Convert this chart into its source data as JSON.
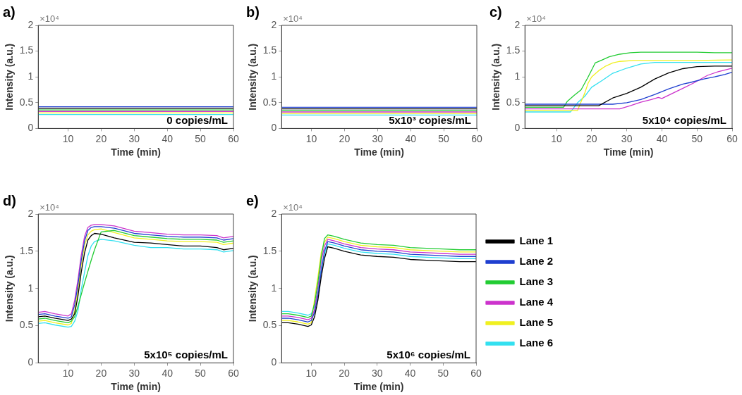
{
  "chart_data": [
    {
      "type": "line",
      "title": "a)",
      "xlabel": "Time (min)",
      "ylabel": "Intensity (a.u.)",
      "xlim": [
        1,
        60
      ],
      "xticks": [
        10,
        20,
        30,
        40,
        50,
        60
      ],
      "ylim": [
        0,
        2
      ],
      "yticks": [
        0,
        0.5,
        1,
        1.5,
        2
      ],
      "annotations": [
        "×10⁴",
        "0 copies/mL"
      ],
      "x": [
        1,
        10,
        20,
        30,
        40,
        50,
        60
      ],
      "series": [
        {
          "color": "#000000",
          "values": [
            0.39,
            0.39,
            0.39,
            0.39,
            0.39,
            0.39,
            0.39
          ]
        },
        {
          "color": "#1f3fd0",
          "values": [
            0.42,
            0.42,
            0.42,
            0.42,
            0.42,
            0.42,
            0.42
          ]
        },
        {
          "color": "#22cc33",
          "values": [
            0.36,
            0.36,
            0.36,
            0.36,
            0.36,
            0.36,
            0.36
          ]
        },
        {
          "color": "#cc33cc",
          "values": [
            0.33,
            0.33,
            0.33,
            0.33,
            0.33,
            0.33,
            0.33
          ]
        },
        {
          "color": "#f0f020",
          "values": [
            0.3,
            0.3,
            0.3,
            0.3,
            0.3,
            0.3,
            0.3
          ]
        },
        {
          "color": "#33e0f0",
          "values": [
            0.27,
            0.27,
            0.27,
            0.27,
            0.27,
            0.27,
            0.27
          ]
        }
      ]
    },
    {
      "type": "line",
      "title": "b)",
      "xlabel": "Time (min)",
      "ylabel": "Intensity (a.u.)",
      "xlim": [
        1,
        60
      ],
      "xticks": [
        10,
        20,
        30,
        40,
        50,
        60
      ],
      "ylim": [
        0,
        2
      ],
      "yticks": [
        0,
        0.5,
        1,
        1.5,
        2
      ],
      "annotations": [
        "×10⁴",
        "5x10³ copies/mL"
      ],
      "x": [
        1,
        10,
        20,
        30,
        40,
        50,
        60
      ],
      "series": [
        {
          "color": "#000000",
          "values": [
            0.38,
            0.38,
            0.38,
            0.38,
            0.38,
            0.38,
            0.38
          ]
        },
        {
          "color": "#1f3fd0",
          "values": [
            0.41,
            0.41,
            0.41,
            0.41,
            0.41,
            0.41,
            0.41
          ]
        },
        {
          "color": "#22cc33",
          "values": [
            0.35,
            0.35,
            0.35,
            0.35,
            0.35,
            0.35,
            0.35
          ]
        },
        {
          "color": "#cc33cc",
          "values": [
            0.32,
            0.32,
            0.32,
            0.32,
            0.32,
            0.32,
            0.32
          ]
        },
        {
          "color": "#f0f020",
          "values": [
            0.29,
            0.29,
            0.29,
            0.29,
            0.29,
            0.29,
            0.29
          ]
        },
        {
          "color": "#33e0f0",
          "values": [
            0.26,
            0.26,
            0.26,
            0.26,
            0.26,
            0.26,
            0.26
          ]
        }
      ]
    },
    {
      "type": "line",
      "title": "c)",
      "xlabel": "Time (min)",
      "ylabel": "Intensity (a.u.)",
      "xlim": [
        1,
        60
      ],
      "xticks": [
        10,
        20,
        30,
        40,
        50,
        60
      ],
      "ylim": [
        0,
        2
      ],
      "yticks": [
        0,
        0.5,
        1,
        1.5,
        2
      ],
      "annotations": [
        "×10⁴",
        "5x10⁴ copies/mL"
      ],
      "series": [
        {
          "color": "#000000",
          "x": [
            1,
            5,
            10,
            15,
            20,
            22,
            26,
            30,
            34,
            38,
            42,
            46,
            50,
            55,
            60
          ],
          "values": [
            0.44,
            0.44,
            0.44,
            0.44,
            0.44,
            0.44,
            0.59,
            0.68,
            0.8,
            0.96,
            1.08,
            1.16,
            1.2,
            1.21,
            1.21
          ]
        },
        {
          "color": "#1f3fd0",
          "x": [
            1,
            5,
            10,
            15,
            20,
            26,
            30,
            34,
            38,
            42,
            46,
            48,
            52,
            55,
            58,
            60
          ],
          "values": [
            0.47,
            0.47,
            0.47,
            0.47,
            0.47,
            0.47,
            0.5,
            0.56,
            0.66,
            0.77,
            0.86,
            0.89,
            0.96,
            1.0,
            1.05,
            1.09
          ]
        },
        {
          "color": "#22cc33",
          "x": [
            1,
            5,
            10,
            12,
            13,
            15,
            17,
            19,
            21,
            23,
            25,
            28,
            31,
            34,
            40,
            50,
            55,
            60
          ],
          "values": [
            0.41,
            0.41,
            0.41,
            0.41,
            0.52,
            0.64,
            0.75,
            1.0,
            1.27,
            1.33,
            1.39,
            1.44,
            1.47,
            1.48,
            1.48,
            1.48,
            1.47,
            1.47
          ]
        },
        {
          "color": "#cc33cc",
          "x": [
            1,
            5,
            10,
            20,
            28,
            31,
            34,
            37,
            39,
            40,
            43,
            46,
            49,
            53,
            56,
            60
          ],
          "values": [
            0.38,
            0.38,
            0.38,
            0.38,
            0.38,
            0.44,
            0.51,
            0.56,
            0.6,
            0.58,
            0.68,
            0.78,
            0.88,
            1.03,
            1.1,
            1.17
          ]
        },
        {
          "color": "#f0f020",
          "x": [
            1,
            5,
            10,
            15,
            16,
            17,
            18,
            19,
            20,
            22,
            24,
            26,
            28,
            32,
            40,
            50,
            60
          ],
          "values": [
            0.35,
            0.35,
            0.35,
            0.35,
            0.35,
            0.52,
            0.68,
            0.88,
            1.0,
            1.12,
            1.21,
            1.27,
            1.3,
            1.32,
            1.32,
            1.32,
            1.33
          ]
        },
        {
          "color": "#33e0f0",
          "x": [
            1,
            5,
            10,
            13,
            14,
            15,
            16,
            18,
            20,
            23,
            26,
            30,
            34,
            38,
            42,
            50,
            60
          ],
          "values": [
            0.32,
            0.32,
            0.32,
            0.32,
            0.32,
            0.41,
            0.5,
            0.62,
            0.8,
            0.93,
            1.07,
            1.17,
            1.25,
            1.28,
            1.28,
            1.28,
            1.28
          ]
        }
      ]
    },
    {
      "type": "line",
      "title": "d)",
      "xlabel": "Time (min)",
      "ylabel": "Intensity (a.u.)",
      "xlim": [
        1,
        60
      ],
      "xticks": [
        10,
        20,
        30,
        40,
        50,
        60
      ],
      "ylim": [
        0,
        2
      ],
      "yticks": [
        0,
        0.5,
        1,
        1.5,
        2
      ],
      "annotations": [
        "×10⁴",
        "5x10⁵ copies/mL"
      ],
      "x": [
        1,
        3,
        6,
        10,
        11,
        12,
        13,
        14,
        15,
        16,
        17,
        18,
        20,
        24,
        30,
        35,
        40,
        45,
        50,
        55,
        57,
        60
      ],
      "series": [
        {
          "color": "#000000",
          "values": [
            0.62,
            0.63,
            0.6,
            0.57,
            0.59,
            0.66,
            0.9,
            1.22,
            1.48,
            1.65,
            1.71,
            1.74,
            1.73,
            1.68,
            1.62,
            1.61,
            1.59,
            1.57,
            1.57,
            1.55,
            1.52,
            1.54
          ]
        },
        {
          "color": "#1f3fd0",
          "values": [
            0.65,
            0.66,
            0.63,
            0.6,
            0.62,
            0.78,
            1.05,
            1.38,
            1.64,
            1.78,
            1.82,
            1.83,
            1.83,
            1.81,
            1.74,
            1.72,
            1.7,
            1.69,
            1.69,
            1.68,
            1.65,
            1.67
          ]
        },
        {
          "color": "#22cc33",
          "values": [
            0.59,
            0.6,
            0.57,
            0.54,
            0.56,
            0.62,
            0.76,
            0.92,
            1.08,
            1.23,
            1.38,
            1.52,
            1.76,
            1.78,
            1.71,
            1.69,
            1.67,
            1.66,
            1.66,
            1.65,
            1.62,
            1.64
          ]
        },
        {
          "color": "#cc33cc",
          "values": [
            0.68,
            0.69,
            0.66,
            0.63,
            0.66,
            0.84,
            1.12,
            1.45,
            1.7,
            1.82,
            1.85,
            1.86,
            1.86,
            1.84,
            1.77,
            1.75,
            1.73,
            1.72,
            1.72,
            1.71,
            1.68,
            1.7
          ]
        },
        {
          "color": "#f0f020",
          "values": [
            0.56,
            0.57,
            0.54,
            0.51,
            0.53,
            0.7,
            0.98,
            1.32,
            1.58,
            1.72,
            1.77,
            1.79,
            1.8,
            1.75,
            1.68,
            1.66,
            1.64,
            1.63,
            1.63,
            1.62,
            1.59,
            1.61
          ]
        },
        {
          "color": "#33e0f0",
          "values": [
            0.53,
            0.54,
            0.51,
            0.48,
            0.49,
            0.56,
            0.7,
            0.99,
            1.22,
            1.44,
            1.57,
            1.63,
            1.66,
            1.64,
            1.58,
            1.55,
            1.55,
            1.53,
            1.53,
            1.52,
            1.49,
            1.51
          ]
        }
      ]
    },
    {
      "type": "line",
      "title": "e)",
      "xlabel": "Time (min)",
      "ylabel": "Intensity (a.u.)",
      "xlim": [
        1,
        60
      ],
      "xticks": [
        10,
        20,
        30,
        40,
        50,
        60
      ],
      "ylim": [
        0,
        2
      ],
      "yticks": [
        0,
        0.5,
        1,
        1.5,
        2
      ],
      "annotations": [
        "×10⁴",
        "5x10⁶ copies/mL"
      ],
      "legend": "right",
      "x": [
        1,
        3,
        6,
        9,
        10,
        11,
        12,
        13,
        14,
        15,
        17,
        20,
        25,
        30,
        35,
        40,
        45,
        50,
        55,
        60
      ],
      "series": [
        {
          "name": "Lane 1",
          "color": "#000000",
          "values": [
            0.54,
            0.54,
            0.52,
            0.49,
            0.51,
            0.62,
            0.84,
            1.15,
            1.4,
            1.56,
            1.54,
            1.5,
            1.45,
            1.43,
            1.42,
            1.39,
            1.38,
            1.37,
            1.36,
            1.36
          ]
        },
        {
          "name": "Lane 2",
          "color": "#1f3fd0",
          "values": [
            0.6,
            0.6,
            0.58,
            0.55,
            0.57,
            0.68,
            0.9,
            1.22,
            1.5,
            1.63,
            1.61,
            1.57,
            1.52,
            1.5,
            1.49,
            1.46,
            1.45,
            1.44,
            1.43,
            1.43
          ]
        },
        {
          "name": "Lane 3",
          "color": "#22cc33",
          "values": [
            0.66,
            0.66,
            0.64,
            0.61,
            0.63,
            0.8,
            1.08,
            1.42,
            1.67,
            1.72,
            1.7,
            1.66,
            1.61,
            1.59,
            1.58,
            1.55,
            1.54,
            1.53,
            1.52,
            1.52
          ]
        },
        {
          "name": "Lane 4",
          "color": "#cc33cc",
          "values": [
            0.63,
            0.63,
            0.61,
            0.58,
            0.6,
            0.72,
            1.01,
            1.36,
            1.57,
            1.66,
            1.64,
            1.6,
            1.55,
            1.53,
            1.52,
            1.49,
            1.48,
            1.47,
            1.46,
            1.46
          ]
        },
        {
          "name": "Lane 5",
          "color": "#f0f020",
          "values": [
            0.57,
            0.57,
            0.55,
            0.52,
            0.54,
            0.86,
            1.15,
            1.48,
            1.62,
            1.69,
            1.67,
            1.63,
            1.58,
            1.56,
            1.55,
            1.52,
            1.51,
            1.5,
            1.49,
            1.49
          ]
        },
        {
          "name": "Lane 6",
          "color": "#33e0f0",
          "values": [
            0.69,
            0.69,
            0.67,
            0.64,
            0.66,
            0.76,
            0.95,
            1.28,
            1.46,
            1.6,
            1.58,
            1.54,
            1.49,
            1.47,
            1.46,
            1.43,
            1.42,
            1.41,
            1.4,
            1.4
          ]
        }
      ]
    }
  ]
}
